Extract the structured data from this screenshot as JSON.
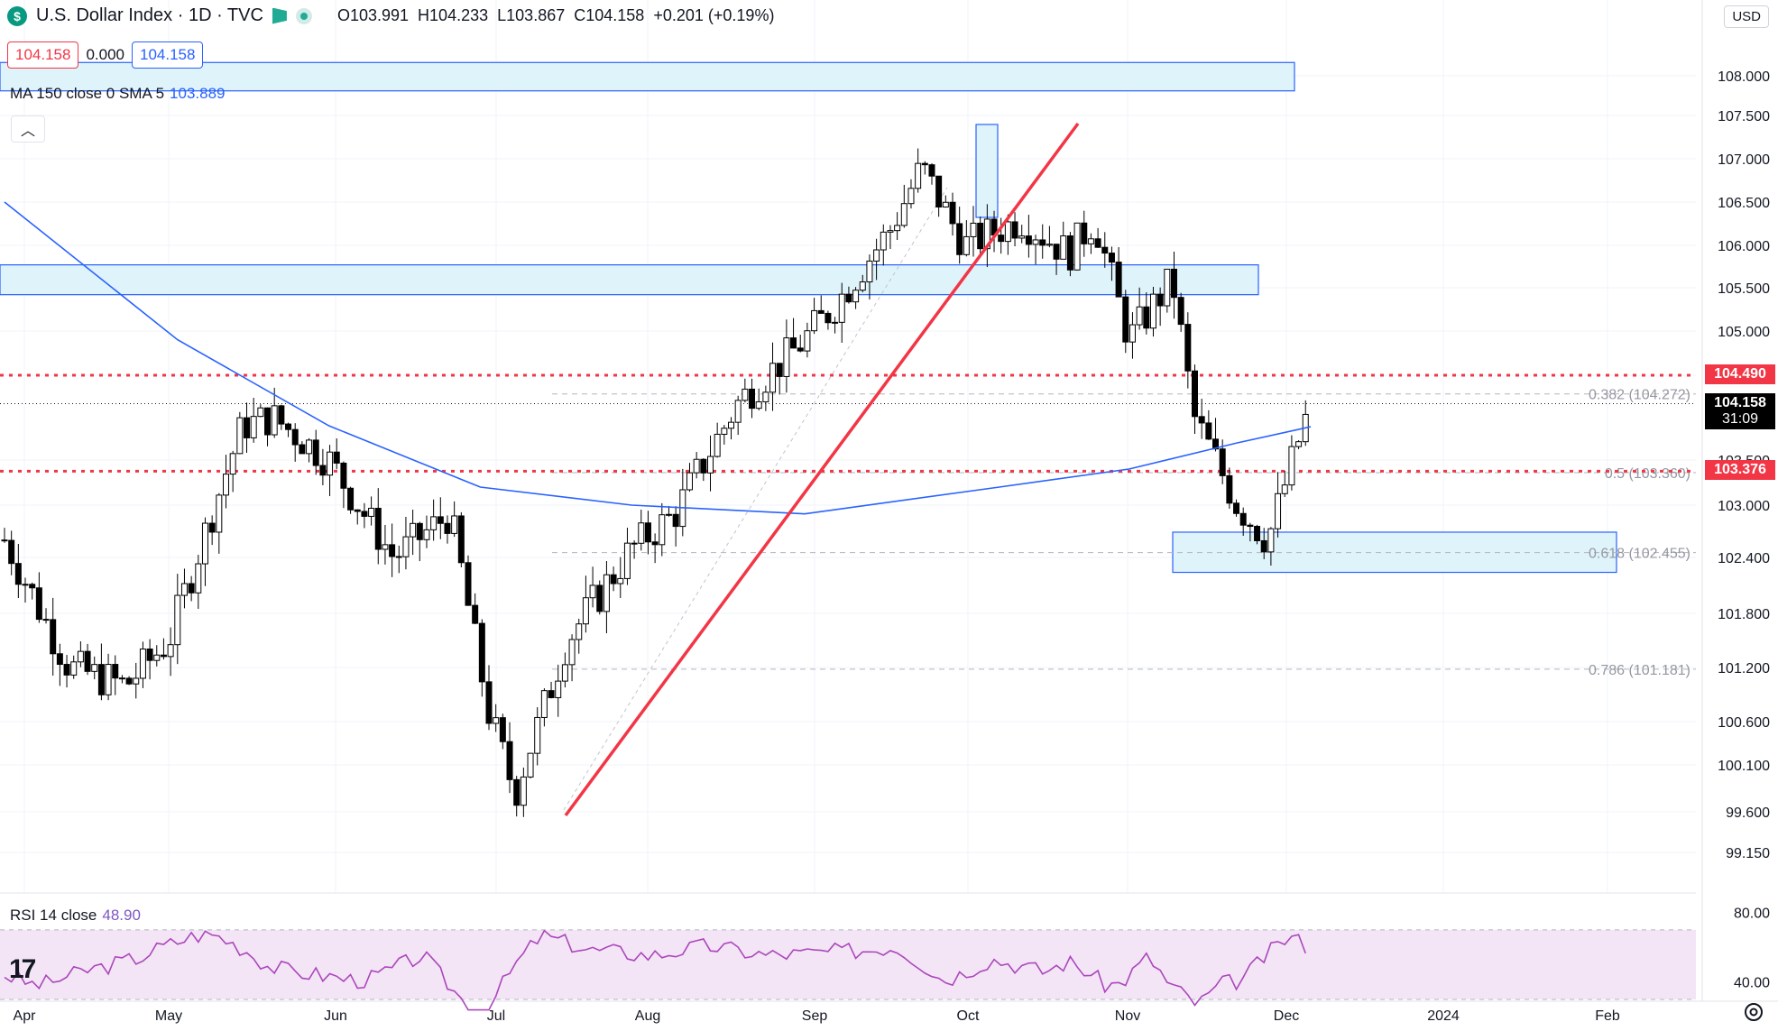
{
  "header": {
    "icon_symbol": "$",
    "title": "U.S. Dollar Index · 1D · TVC",
    "open_label": "O",
    "open": "103.991",
    "high_label": "H",
    "high": "104.233",
    "low_label": "L",
    "low": "103.867",
    "close_label": "C",
    "close": "104.158",
    "change": "+0.201 (+0.19%)",
    "currency": "USD"
  },
  "price_pills": {
    "left": "104.158",
    "middle": "0.000",
    "right": "104.158"
  },
  "indicators": {
    "ma_label": "MA 150 close 0 SMA 5",
    "ma_value": "103.889",
    "rsi_label": "RSI 14 close",
    "rsi_value": "48.90"
  },
  "price_tags": {
    "red_upper": "104.490",
    "current_price": "104.158",
    "countdown": "31:09",
    "red_lower": "103.376"
  },
  "colors": {
    "up": "#ffffff",
    "down": "#000000",
    "ma": "#2962ff",
    "resistance": "#f23645",
    "zone_fill": "#dff3fa",
    "zone_stroke": "#2962ff",
    "rsi": "#ab47bc",
    "rsi_band": "#f3e5f5"
  },
  "chart_data": {
    "type": "candlestick",
    "yaxis_ticks": [
      "108.000",
      "107.500",
      "107.000",
      "106.500",
      "106.000",
      "105.500",
      "105.000",
      "104.490",
      "103.500",
      "103.000",
      "102.400",
      "101.800",
      "101.200",
      "100.600",
      "100.100",
      "99.600",
      "99.150"
    ],
    "xaxis_ticks": [
      "Apr",
      "May",
      "Jun",
      "Jul",
      "Aug",
      "Sep",
      "Oct",
      "Nov",
      "Dec",
      "2024",
      "Feb"
    ],
    "rsi_ticks": [
      "80.00",
      "40.00"
    ],
    "fib_levels": [
      {
        "label": "0.382 (104.272)",
        "value": 104.272
      },
      {
        "label": "0.5 (103.360)",
        "value": 103.36
      },
      {
        "label": "0.618 (102.455)",
        "value": 102.455
      },
      {
        "label": "0.786 (101.181)",
        "value": 101.181
      }
    ],
    "horizontal_lines": [
      104.49,
      103.376
    ],
    "zones": [
      {
        "from": 107.81,
        "to": 108.16,
        "start": "Apr",
        "end": "Dec"
      },
      {
        "from": 105.42,
        "to": 105.77,
        "start": "Apr",
        "end": "Dec"
      },
      {
        "from": 102.24,
        "to": 102.69,
        "start": "Nov",
        "end": "2024"
      }
    ],
    "series_close_keypoints": [
      {
        "date": "Apr",
        "value": 102.6
      },
      {
        "date": "May",
        "value": 101.5
      },
      {
        "date": "Jun",
        "value": 104.1
      },
      {
        "date": "Jul",
        "value": 102.9
      },
      {
        "date": "mid-Jul",
        "value": 99.7
      },
      {
        "date": "Aug",
        "value": 102.0
      },
      {
        "date": "Sep",
        "value": 104.2
      },
      {
        "date": "Oct",
        "value": 106.9
      },
      {
        "date": "Nov",
        "value": 105.6
      },
      {
        "date": "late-Nov",
        "value": 102.6
      },
      {
        "date": "Dec",
        "value": 104.158
      }
    ],
    "ma150_keypoints": [
      {
        "date": "Apr",
        "value": 106.5
      },
      {
        "date": "Jun",
        "value": 103.7
      },
      {
        "date": "Aug",
        "value": 102.9
      },
      {
        "date": "Oct",
        "value": 103.4
      },
      {
        "date": "Dec",
        "value": 103.889
      }
    ]
  }
}
